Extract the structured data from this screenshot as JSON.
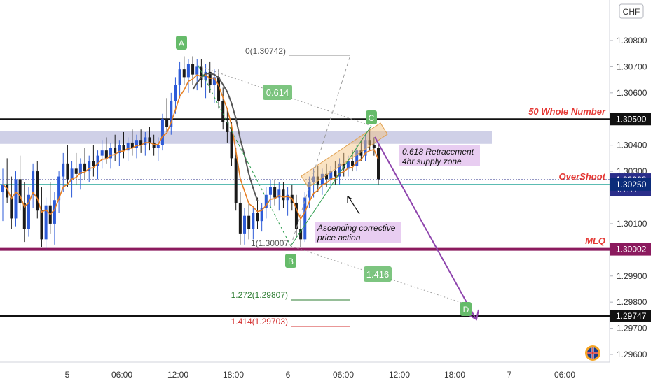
{
  "chart_data": {
    "type": "candlestick",
    "currency": "CHF",
    "y_axis": {
      "ticks": [
        "1.30800",
        "1.30700",
        "1.30600",
        "1.30400",
        "1.30300",
        "1.30100",
        "1.29900",
        "1.29800",
        "1.29700",
        "1.29600"
      ],
      "ylim": [
        1.2955,
        1.3087
      ]
    },
    "x_axis": {
      "ticks": [
        "5",
        "06:00",
        "12:00",
        "18:00",
        "6",
        "06:00",
        "12:00",
        "18:00",
        "7",
        "06:00"
      ]
    },
    "price_badges": [
      {
        "label": "1.30500",
        "value": 1.305,
        "color": "#111111"
      },
      {
        "label": "1.30268",
        "value": 1.30268,
        "color": "#2a2e8a",
        "sub": "01:11"
      },
      {
        "label": "1.30250",
        "value": 1.3025,
        "color": "#0b2c7a"
      },
      {
        "label": "1.30002",
        "value": 1.30002,
        "color": "#8b1a5e"
      },
      {
        "label": "1.29747",
        "value": 1.29747,
        "color": "#111111"
      }
    ],
    "levels": [
      {
        "name": "50 Whole Number",
        "value": 1.305,
        "color": "#111111"
      },
      {
        "name": "OverShoot",
        "value": 1.30268,
        "color": "#2a2e8a"
      },
      {
        "name": "1.30250",
        "value": 1.3025,
        "color": "#26a69a"
      },
      {
        "name": "MLQ",
        "value": 1.30002,
        "color": "#8b1a5e"
      },
      {
        "name": "1.29747",
        "value": 1.29747,
        "color": "#111111"
      }
    ],
    "supply_zone": {
      "low": 1.30405,
      "high": 1.30455
    },
    "points": [
      {
        "label": "A",
        "price": 1.30742
      },
      {
        "label": "B",
        "price": 1.30007
      },
      {
        "label": "C",
        "price": 1.3047
      },
      {
        "label": "D",
        "price": 1.29747
      }
    ],
    "fib_labels": [
      {
        "text": "0(1.30742)",
        "price": 1.30742
      },
      {
        "text": "1(1.30007",
        "price": 1.30007
      },
      {
        "text": "1.272(1.29807)",
        "price": 1.29807,
        "color": "#2e7d32"
      },
      {
        "text": "1.414(1.29703)",
        "price": 1.29703,
        "color": "#d32f2f"
      }
    ],
    "ratio_labels": [
      "0.614",
      "1.416"
    ],
    "annotations": [
      {
        "text": "50 Whole Number",
        "color": "#e53935"
      },
      {
        "text": "OverShoot",
        "color": "#e53935"
      },
      {
        "text": "MLQ",
        "color": "#e53935"
      },
      {
        "text": "0.618 Retracement\n4hr supply zone"
      },
      {
        "text": "Ascending corrective\nprice action"
      }
    ],
    "badge_countdown": "01:11",
    "candles": [
      [
        1.3022,
        1.3031,
        1.3011,
        1.3025
      ],
      [
        1.3025,
        1.3035,
        1.3018,
        1.302
      ],
      [
        1.302,
        1.3028,
        1.3008,
        1.3012
      ],
      [
        1.3012,
        1.303,
        1.3009,
        1.3027
      ],
      [
        1.3027,
        1.3036,
        1.3015,
        1.3018
      ],
      [
        1.3018,
        1.3026,
        1.3003,
        1.3008
      ],
      [
        1.3008,
        1.3024,
        1.3005,
        1.3021
      ],
      [
        1.3021,
        1.3033,
        1.3016,
        1.303
      ],
      [
        1.303,
        1.3034,
        1.3012,
        1.3015
      ],
      [
        1.3015,
        1.3024,
        1.3001,
        1.3004
      ],
      [
        1.3004,
        1.302,
        1.3,
        1.3017
      ],
      [
        1.3017,
        1.3026,
        1.3006,
        1.301
      ],
      [
        1.301,
        1.3022,
        1.3002,
        1.3019
      ],
      [
        1.3019,
        1.303,
        1.3014,
        1.3028
      ],
      [
        1.3028,
        1.3037,
        1.3022,
        1.3033
      ],
      [
        1.3033,
        1.304,
        1.3024,
        1.3027
      ],
      [
        1.3027,
        1.3034,
        1.302,
        1.3031
      ],
      [
        1.3031,
        1.3037,
        1.3025,
        1.3029
      ],
      [
        1.3029,
        1.3035,
        1.3023,
        1.3033
      ],
      [
        1.3033,
        1.3039,
        1.3027,
        1.303
      ],
      [
        1.303,
        1.3036,
        1.3026,
        1.3034
      ],
      [
        1.3034,
        1.304,
        1.3028,
        1.3032
      ],
      [
        1.3032,
        1.3038,
        1.3027,
        1.3036
      ],
      [
        1.3036,
        1.3042,
        1.3031,
        1.3038
      ],
      [
        1.3038,
        1.3043,
        1.3033,
        1.3035
      ],
      [
        1.3035,
        1.3041,
        1.3031,
        1.3039
      ],
      [
        1.3039,
        1.3044,
        1.3034,
        1.3037
      ],
      [
        1.3037,
        1.3042,
        1.3032,
        1.304
      ],
      [
        1.304,
        1.3045,
        1.3035,
        1.3038
      ],
      [
        1.3038,
        1.3043,
        1.3034,
        1.3041
      ],
      [
        1.3041,
        1.3046,
        1.3036,
        1.3039
      ],
      [
        1.3039,
        1.3044,
        1.3035,
        1.3042
      ],
      [
        1.3042,
        1.3046,
        1.3037,
        1.304
      ],
      [
        1.304,
        1.3045,
        1.3036,
        1.3043
      ],
      [
        1.3043,
        1.3047,
        1.3038,
        1.3041
      ],
      [
        1.3041,
        1.3044,
        1.3036,
        1.3039
      ],
      [
        1.3039,
        1.3043,
        1.3034,
        1.304
      ],
      [
        1.304,
        1.3052,
        1.3038,
        1.305
      ],
      [
        1.305,
        1.3058,
        1.3045,
        1.3047
      ],
      [
        1.3047,
        1.306,
        1.3044,
        1.3057
      ],
      [
        1.3057,
        1.3066,
        1.3052,
        1.3063
      ],
      [
        1.3063,
        1.3072,
        1.3058,
        1.3069
      ],
      [
        1.3069,
        1.3074,
        1.3063,
        1.3066
      ],
      [
        1.3066,
        1.3073,
        1.306,
        1.3071
      ],
      [
        1.3071,
        1.3074,
        1.3063,
        1.3067
      ],
      [
        1.3067,
        1.3073,
        1.3061,
        1.307
      ],
      [
        1.307,
        1.3073,
        1.3062,
        1.3065
      ],
      [
        1.3065,
        1.3071,
        1.3058,
        1.3068
      ],
      [
        1.3068,
        1.3072,
        1.306,
        1.3063
      ],
      [
        1.3063,
        1.3069,
        1.3056,
        1.3066
      ],
      [
        1.3066,
        1.3069,
        1.3054,
        1.3057
      ],
      [
        1.3057,
        1.3062,
        1.3046,
        1.3049
      ],
      [
        1.3049,
        1.3054,
        1.3041,
        1.3045
      ],
      [
        1.3045,
        1.3049,
        1.3032,
        1.3035
      ],
      [
        1.3035,
        1.3039,
        1.3015,
        1.3018
      ],
      [
        1.3018,
        1.3022,
        1.3002,
        1.3006
      ],
      [
        1.3006,
        1.3016,
        1.3002,
        1.3013
      ],
      [
        1.3013,
        1.3018,
        1.3004,
        1.3008
      ],
      [
        1.3008,
        1.3016,
        1.3004,
        1.3014
      ],
      [
        1.3014,
        1.302,
        1.3008,
        1.3011
      ],
      [
        1.3011,
        1.3018,
        1.3007,
        1.3016
      ],
      [
        1.3016,
        1.3024,
        1.3012,
        1.3021
      ],
      [
        1.3021,
        1.3027,
        1.3016,
        1.3024
      ],
      [
        1.3024,
        1.3027,
        1.3017,
        1.302
      ],
      [
        1.302,
        1.3026,
        1.3015,
        1.3023
      ],
      [
        1.3023,
        1.3026,
        1.3016,
        1.3019
      ],
      [
        1.3019,
        1.3024,
        1.3013,
        1.3021
      ],
      [
        1.3021,
        1.3025,
        1.3015,
        1.3018
      ],
      [
        1.3018,
        1.3021,
        1.3005,
        1.3008
      ],
      [
        1.3008,
        1.3012,
        1.3001,
        1.3004
      ],
      [
        1.3004,
        1.3022,
        1.3003,
        1.302
      ],
      [
        1.302,
        1.3028,
        1.3016,
        1.3026
      ],
      [
        1.3026,
        1.3031,
        1.302,
        1.3028
      ],
      [
        1.3028,
        1.3032,
        1.3022,
        1.3025
      ],
      [
        1.3025,
        1.3031,
        1.3021,
        1.3029
      ],
      [
        1.3029,
        1.3033,
        1.3024,
        1.3027
      ],
      [
        1.3027,
        1.3032,
        1.3023,
        1.303
      ],
      [
        1.303,
        1.3034,
        1.3025,
        1.3028
      ],
      [
        1.3028,
        1.3035,
        1.3025,
        1.3033
      ],
      [
        1.3033,
        1.3037,
        1.3028,
        1.3031
      ],
      [
        1.3031,
        1.3036,
        1.3028,
        1.3034
      ],
      [
        1.3034,
        1.3038,
        1.303,
        1.3032
      ],
      [
        1.3032,
        1.304,
        1.303,
        1.3038
      ],
      [
        1.3038,
        1.3042,
        1.3034,
        1.3036
      ],
      [
        1.3036,
        1.3044,
        1.3034,
        1.3042
      ],
      [
        1.3042,
        1.3046,
        1.3038,
        1.304
      ],
      [
        1.304,
        1.3043,
        1.3036,
        1.3039
      ],
      [
        1.3039,
        1.304,
        1.3025,
        1.3027
      ]
    ]
  }
}
